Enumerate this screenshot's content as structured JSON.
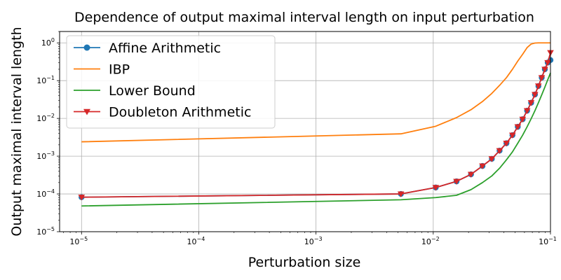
{
  "chart_data": {
    "type": "line",
    "title": "Dependence of output maximal interval length on input perturbation",
    "xlabel": "Perturbation size",
    "ylabel": "Output maximal interval length",
    "xscale": "log",
    "yscale": "log",
    "xlim": [
      6.5e-06,
      0.1
    ],
    "ylim": [
      1e-05,
      2
    ],
    "xticks": [
      {
        "base": "10",
        "exp": "−5"
      },
      {
        "base": "10",
        "exp": "−4"
      },
      {
        "base": "10",
        "exp": "−3"
      },
      {
        "base": "10",
        "exp": "−2"
      },
      {
        "base": "10",
        "exp": "−1"
      }
    ],
    "yticks": [
      {
        "base": "10",
        "exp": "−5"
      },
      {
        "base": "10",
        "exp": "−4"
      },
      {
        "base": "10",
        "exp": "−3"
      },
      {
        "base": "10",
        "exp": "−2"
      },
      {
        "base": "10",
        "exp": "−1"
      },
      {
        "base": "10",
        "exp": "0"
      }
    ],
    "grid": true,
    "legend_position": "top-left",
    "series": [
      {
        "name": "Affine Arithmetic",
        "color": "#1f77b4",
        "marker": "circle",
        "x": [
          1e-05,
          0.0053,
          0.0105,
          0.0158,
          0.021,
          0.0263,
          0.0316,
          0.0368,
          0.0421,
          0.0474,
          0.0526,
          0.0579,
          0.0632,
          0.0684,
          0.0737,
          0.0789,
          0.0842,
          0.0895,
          0.0947,
          0.1
        ],
        "y": [
          8.2e-05,
          0.0001,
          0.000148,
          0.000215,
          0.00033,
          0.00055,
          0.00085,
          0.0014,
          0.0022,
          0.0036,
          0.006,
          0.0095,
          0.016,
          0.026,
          0.043,
          0.072,
          0.12,
          0.2,
          0.3,
          0.35
        ]
      },
      {
        "name": "IBP",
        "color": "#ff7f0e",
        "marker": "none",
        "x": [
          1e-05,
          0.0053,
          0.0105,
          0.0158,
          0.021,
          0.0263,
          0.0316,
          0.0368,
          0.0421,
          0.0474,
          0.0526,
          0.0579,
          0.0632,
          0.0684,
          0.0737,
          0.0789,
          0.0842,
          0.0895,
          0.0947,
          0.1
        ],
        "y": [
          0.0024,
          0.0039,
          0.0062,
          0.0105,
          0.017,
          0.028,
          0.046,
          0.075,
          0.12,
          0.2,
          0.33,
          0.5,
          0.75,
          0.93,
          0.99,
          1.0,
          1.0,
          1.0,
          1.0,
          1.0
        ]
      },
      {
        "name": "Lower Bound",
        "color": "#2ca02c",
        "marker": "none",
        "x": [
          1e-05,
          0.0053,
          0.0105,
          0.0158,
          0.021,
          0.0263,
          0.0316,
          0.0368,
          0.0421,
          0.0474,
          0.0526,
          0.0579,
          0.0632,
          0.0684,
          0.0737,
          0.0789,
          0.0842,
          0.0895,
          0.0947,
          0.1
        ],
        "y": [
          4.8e-05,
          7e-05,
          8e-05,
          9.2e-05,
          0.00013,
          0.0002,
          0.0003,
          0.00048,
          0.0008,
          0.0013,
          0.0022,
          0.0036,
          0.006,
          0.0098,
          0.016,
          0.026,
          0.042,
          0.067,
          0.105,
          0.16
        ]
      },
      {
        "name": "Doubleton Arithmetic",
        "color": "#d62728",
        "marker": "triangle-down",
        "x": [
          1e-05,
          0.0053,
          0.0105,
          0.0158,
          0.021,
          0.0263,
          0.0316,
          0.0368,
          0.0421,
          0.0474,
          0.0526,
          0.0579,
          0.0632,
          0.0684,
          0.0737,
          0.0789,
          0.0842,
          0.0895,
          0.0947,
          0.1
        ],
        "y": [
          8.2e-05,
          0.0001,
          0.000148,
          0.000215,
          0.00033,
          0.00055,
          0.00085,
          0.0014,
          0.0022,
          0.0036,
          0.006,
          0.0095,
          0.016,
          0.026,
          0.043,
          0.072,
          0.12,
          0.2,
          0.3,
          0.55
        ]
      }
    ]
  }
}
